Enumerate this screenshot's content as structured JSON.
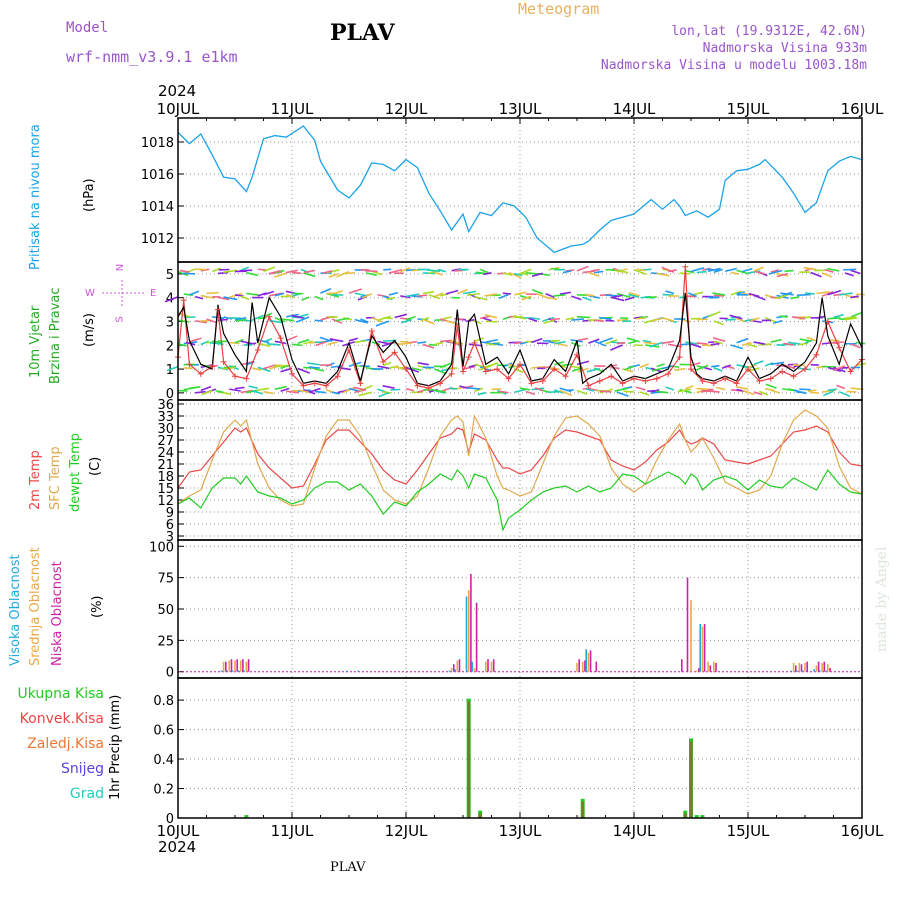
{
  "header": {
    "model_label": "Model",
    "model_name": "wrf-nmm_v3.9.1  e1km",
    "title": "PLAV",
    "product": "Meteogram",
    "lonlat": "lon,lat (19.9312E, 42.6N)",
    "altitude": "Nadmorska Visina 933m",
    "model_altitude": "Nadmorska Visina u modelu 1003.18m",
    "footer": "PLAV",
    "credit": "made by Angel"
  },
  "colors": {
    "pressure": "#1aa3e8",
    "wind_text": "#22aa22",
    "wind_mean": "#000000",
    "wind_gust": "#e84040",
    "t2m": "#e84848",
    "sfc": "#e0a850",
    "dewpt": "#22cc22",
    "high_cloud": "#22aadd",
    "mid_cloud": "#e8a848",
    "low_cloud": "#cc22aa",
    "total_precip": "#22cc22",
    "conv_precip": "#ee4444",
    "frozen_precip": "#ee7733",
    "snow": "#5544dd",
    "hail": "#22ccbb",
    "header_purple": "#9955cc",
    "header_orange": "#e8b060"
  },
  "time_axis": {
    "year": "2024",
    "ticks": [
      "10JUL",
      "11JUL",
      "12JUL",
      "13JUL",
      "14JUL",
      "15JUL",
      "16JUL"
    ],
    "start_day": 10,
    "end_day": 16
  },
  "chart_data": [
    {
      "type": "line",
      "panel": "pressure",
      "ylabel": [
        "Pritisak na nivou mora",
        "(hPa)"
      ],
      "ylim": [
        1010.5,
        1019.5
      ],
      "yticks": [
        "1012",
        "1014",
        "1016",
        "1018"
      ],
      "ytick_values": [
        1012,
        1014,
        1016,
        1018
      ],
      "x": [
        10.0,
        10.1,
        10.2,
        10.3,
        10.4,
        10.5,
        10.6,
        10.65,
        10.75,
        10.85,
        10.95,
        11.1,
        11.2,
        11.25,
        11.4,
        11.5,
        11.6,
        11.7,
        11.8,
        11.9,
        12.0,
        12.1,
        12.2,
        12.3,
        12.4,
        12.5,
        12.55,
        12.65,
        12.75,
        12.85,
        12.95,
        13.05,
        13.15,
        13.3,
        13.45,
        13.55,
        13.6,
        13.7,
        13.8,
        13.9,
        14.0,
        14.1,
        14.15,
        14.25,
        14.35,
        14.4,
        14.45,
        14.55,
        14.65,
        14.75,
        14.8,
        14.9,
        15.0,
        15.1,
        15.15,
        15.3,
        15.4,
        15.5,
        15.6,
        15.7,
        15.8,
        15.9,
        16.0
      ],
      "values": [
        1018.6,
        1017.9,
        1018.5,
        1017.2,
        1015.8,
        1015.7,
        1014.9,
        1015.8,
        1018.2,
        1018.4,
        1018.3,
        1019.0,
        1018.1,
        1016.8,
        1015.0,
        1014.5,
        1015.3,
        1016.7,
        1016.6,
        1016.2,
        1016.9,
        1016.4,
        1014.8,
        1013.7,
        1012.5,
        1013.5,
        1012.4,
        1013.6,
        1013.4,
        1014.2,
        1014.0,
        1013.3,
        1012.0,
        1011.1,
        1011.5,
        1011.6,
        1011.8,
        1012.5,
        1013.1,
        1013.3,
        1013.5,
        1014.1,
        1014.4,
        1013.8,
        1014.4,
        1014.0,
        1013.4,
        1013.7,
        1013.3,
        1013.8,
        1015.6,
        1016.2,
        1016.3,
        1016.6,
        1016.9,
        1015.8,
        1014.8,
        1013.6,
        1014.2,
        1016.2,
        1016.8,
        1017.1,
        1016.9
      ]
    },
    {
      "type": "line",
      "panel": "wind",
      "ylabel": [
        "10m Vjetar",
        "Brzina i Pravac",
        "(m/s)"
      ],
      "compass": [
        "N",
        "W",
        "E",
        "S"
      ],
      "ylim": [
        -0.3,
        5.5
      ],
      "yticks": [
        "0",
        "1",
        "2",
        "3",
        "4",
        "5"
      ],
      "ytick_values": [
        0,
        1,
        2,
        3,
        4,
        5
      ],
      "series": [
        {
          "name": "mean",
          "x": [
            10.0,
            10.05,
            10.1,
            10.2,
            10.3,
            10.35,
            10.4,
            10.5,
            10.6,
            10.65,
            10.7,
            10.8,
            10.9,
            11.0,
            11.1,
            11.2,
            11.3,
            11.4,
            11.5,
            11.55,
            11.6,
            11.7,
            11.8,
            11.9,
            12.0,
            12.1,
            12.2,
            12.3,
            12.4,
            12.45,
            12.5,
            12.55,
            12.6,
            12.7,
            12.8,
            12.9,
            13.0,
            13.1,
            13.2,
            13.3,
            13.4,
            13.5,
            13.55,
            13.6,
            13.7,
            13.8,
            13.9,
            14.0,
            14.1,
            14.2,
            14.3,
            14.4,
            14.45,
            14.5,
            14.55,
            14.6,
            14.7,
            14.8,
            14.9,
            15.0,
            15.1,
            15.2,
            15.3,
            15.4,
            15.5,
            15.6,
            15.65,
            15.7,
            15.8,
            15.9,
            16.0
          ],
          "values": [
            3.2,
            3.6,
            2.2,
            1.2,
            1.0,
            3.7,
            2.5,
            1.6,
            0.9,
            3.8,
            2.1,
            4.0,
            3.2,
            1.4,
            0.4,
            0.5,
            0.4,
            0.9,
            2.1,
            1.3,
            0.5,
            2.4,
            1.7,
            2.2,
            1.5,
            0.4,
            0.3,
            0.5,
            1.2,
            3.5,
            1.1,
            3.0,
            3.3,
            1.2,
            1.5,
            0.8,
            1.8,
            0.5,
            0.6,
            1.4,
            0.9,
            2.2,
            0.4,
            0.6,
            0.8,
            1.2,
            0.5,
            0.7,
            0.6,
            0.8,
            1.0,
            2.2,
            4.2,
            1.5,
            0.8,
            0.6,
            0.5,
            0.7,
            0.5,
            1.5,
            0.6,
            0.8,
            1.2,
            0.9,
            1.3,
            2.1,
            4.0,
            2.4,
            1.2,
            2.9,
            1.9
          ]
        },
        {
          "name": "gust",
          "x": [
            10.0,
            10.05,
            10.1,
            10.2,
            10.3,
            10.35,
            10.4,
            10.5,
            10.6,
            10.7,
            10.8,
            10.9,
            11.0,
            11.1,
            11.2,
            11.3,
            11.4,
            11.5,
            11.6,
            11.7,
            11.8,
            11.9,
            12.0,
            12.1,
            12.2,
            12.3,
            12.4,
            12.45,
            12.5,
            12.55,
            12.6,
            12.7,
            12.8,
            12.9,
            13.0,
            13.1,
            13.2,
            13.3,
            13.4,
            13.5,
            13.6,
            13.7,
            13.8,
            13.9,
            14.0,
            14.1,
            14.2,
            14.3,
            14.4,
            14.45,
            14.5,
            14.6,
            14.7,
            14.8,
            14.9,
            15.0,
            15.1,
            15.2,
            15.3,
            15.4,
            15.5,
            15.6,
            15.7,
            15.8,
            15.9,
            16.0
          ],
          "values": [
            1.5,
            3.9,
            1.2,
            0.8,
            1.1,
            3.5,
            1.3,
            0.7,
            0.6,
            1.8,
            3.2,
            2.3,
            0.8,
            0.3,
            0.4,
            0.3,
            0.7,
            1.8,
            0.4,
            2.6,
            1.3,
            1.7,
            1.0,
            0.3,
            0.2,
            0.4,
            0.8,
            2.8,
            0.9,
            1.5,
            2.1,
            0.9,
            1.0,
            0.6,
            1.2,
            0.4,
            0.5,
            1.0,
            0.7,
            1.6,
            0.3,
            0.5,
            0.7,
            0.4,
            0.6,
            0.5,
            0.6,
            0.8,
            1.5,
            5.3,
            1.0,
            0.5,
            0.4,
            0.6,
            0.4,
            1.0,
            0.5,
            0.6,
            0.9,
            0.7,
            1.0,
            1.6,
            3.0,
            1.9,
            0.9,
            1.4
          ]
        }
      ]
    },
    {
      "type": "line",
      "panel": "temperature",
      "ylabel": [
        "2m Temp",
        "SFC Temp",
        "dewpt Temp",
        "(C)"
      ],
      "ylim": [
        2,
        37
      ],
      "yticks": [
        "3",
        "6",
        "9",
        "12",
        "15",
        "18",
        "21",
        "24",
        "27",
        "30",
        "33",
        "36"
      ],
      "ytick_values": [
        3,
        6,
        9,
        12,
        15,
        18,
        21,
        24,
        27,
        30,
        33,
        36
      ],
      "x": [
        10.0,
        10.1,
        10.2,
        10.3,
        10.4,
        10.5,
        10.55,
        10.6,
        10.7,
        10.8,
        10.9,
        11.0,
        11.1,
        11.2,
        11.3,
        11.4,
        11.5,
        11.6,
        11.7,
        11.8,
        11.9,
        12.0,
        12.1,
        12.2,
        12.3,
        12.4,
        12.45,
        12.5,
        12.55,
        12.6,
        12.7,
        12.8,
        12.85,
        12.9,
        13.0,
        13.1,
        13.2,
        13.3,
        13.4,
        13.5,
        13.6,
        13.7,
        13.8,
        13.9,
        14.0,
        14.1,
        14.2,
        14.3,
        14.4,
        14.45,
        14.5,
        14.55,
        14.6,
        14.7,
        14.8,
        14.9,
        15.0,
        15.1,
        15.2,
        15.3,
        15.4,
        15.5,
        15.6,
        15.7,
        15.8,
        15.9,
        16.0
      ],
      "series": [
        {
          "name": "2m Temp",
          "values": [
            15.0,
            19.0,
            19.5,
            23.0,
            26.5,
            30.0,
            29.0,
            30.0,
            23.5,
            20.0,
            17.5,
            15.0,
            15.5,
            21.0,
            27.0,
            29.5,
            29.5,
            26.5,
            23.5,
            19.5,
            17.0,
            16.0,
            19.5,
            23.5,
            27.5,
            28.5,
            30.0,
            29.5,
            24.0,
            28.5,
            27.0,
            22.0,
            20.0,
            20.0,
            18.5,
            19.5,
            23.0,
            27.5,
            29.5,
            29.0,
            28.0,
            27.0,
            22.0,
            20.5,
            19.5,
            21.5,
            24.5,
            26.5,
            29.5,
            27.0,
            26.0,
            26.5,
            27.5,
            26.0,
            22.0,
            21.5,
            21.0,
            22.0,
            23.0,
            26.0,
            29.0,
            29.5,
            30.5,
            29.0,
            24.0,
            21.0,
            20.5
          ]
        },
        {
          "name": "SFC Temp",
          "values": [
            11.0,
            13.0,
            14.5,
            22.0,
            29.0,
            32.0,
            30.5,
            32.0,
            21.0,
            15.0,
            12.0,
            10.5,
            11.0,
            20.0,
            28.0,
            32.0,
            32.0,
            28.0,
            21.0,
            14.5,
            12.0,
            11.0,
            13.0,
            20.0,
            28.0,
            32.0,
            33.0,
            31.5,
            23.0,
            33.0,
            27.5,
            18.0,
            15.0,
            14.5,
            13.0,
            14.0,
            21.0,
            28.0,
            32.5,
            33.0,
            31.0,
            28.0,
            20.0,
            16.0,
            14.0,
            16.0,
            22.0,
            27.0,
            31.0,
            27.0,
            24.0,
            25.5,
            27.5,
            22.5,
            16.5,
            15.0,
            13.5,
            14.5,
            18.0,
            26.0,
            32.0,
            34.5,
            33.0,
            30.0,
            20.5,
            15.0,
            13.5
          ]
        },
        {
          "name": "dewpt Temp",
          "values": [
            11.0,
            12.5,
            10.0,
            15.0,
            17.5,
            17.5,
            16.0,
            18.0,
            14.0,
            13.0,
            12.5,
            11.0,
            12.0,
            15.0,
            16.5,
            16.5,
            14.5,
            16.0,
            13.0,
            8.5,
            11.5,
            10.5,
            14.0,
            16.0,
            18.5,
            17.0,
            19.5,
            18.0,
            15.0,
            18.5,
            17.5,
            12.0,
            4.5,
            7.5,
            9.5,
            12.0,
            14.0,
            15.0,
            15.5,
            14.0,
            15.5,
            14.0,
            15.0,
            18.5,
            18.0,
            16.0,
            17.5,
            19.0,
            17.5,
            16.0,
            18.5,
            17.5,
            14.5,
            17.0,
            18.0,
            17.0,
            14.5,
            17.0,
            15.5,
            15.0,
            17.5,
            16.0,
            14.5,
            19.5,
            16.0,
            14.0,
            13.5
          ]
        }
      ]
    },
    {
      "type": "bar",
      "panel": "cloud",
      "ylabel": [
        "Visoka Oblacnost",
        "Srednja Oblacnost",
        "Niska Oblacnost",
        "(%)"
      ],
      "ylim": [
        -5,
        105
      ],
      "yticks": [
        "0",
        "25",
        "50",
        "75",
        "100"
      ],
      "ytick_values": [
        0,
        25,
        50,
        75,
        100
      ],
      "x": [
        10.4,
        10.45,
        10.5,
        10.55,
        10.6,
        11.5,
        11.6,
        12.4,
        12.45,
        12.55,
        12.6,
        12.7,
        12.75,
        13.5,
        13.55,
        13.6,
        13.65,
        14.4,
        14.45,
        14.5,
        14.55,
        14.6,
        14.65,
        14.7,
        15.4,
        15.45,
        15.5,
        15.6,
        15.65,
        15.7
      ],
      "series": [
        {
          "name": "Visoka Oblacnost",
          "values": [
            1,
            1,
            1,
            1,
            1,
            1,
            1,
            1,
            2,
            60,
            8,
            0,
            0,
            0,
            0,
            18,
            0,
            0,
            0,
            0,
            0,
            38,
            0,
            0,
            1,
            1,
            1,
            2,
            1,
            1
          ]
        },
        {
          "name": "Srednja Oblacnost",
          "values": [
            8,
            9,
            9,
            9,
            8,
            0,
            0,
            3,
            9,
            65,
            3,
            8,
            8,
            7,
            8,
            15,
            0,
            0,
            0,
            57,
            1,
            36,
            8,
            8,
            7,
            7,
            7,
            5,
            7,
            6
          ]
        },
        {
          "name": "Niska Oblacnost",
          "values": [
            8,
            10,
            10,
            10,
            10,
            0,
            0,
            6,
            10,
            78,
            55,
            10,
            10,
            10,
            9,
            17,
            8,
            10,
            75,
            0,
            3,
            38,
            5,
            7,
            5,
            6,
            8,
            8,
            8,
            3
          ]
        }
      ]
    },
    {
      "type": "bar",
      "panel": "precip",
      "ylabel": [
        "1hr Precip (mm)"
      ],
      "legend_labels": [
        "Ukupna Kisa",
        "Konvek.Kisa",
        "Zaledj.Kisa",
        "Snijeg",
        "Grad"
      ],
      "ylim": [
        0,
        0.95
      ],
      "yticks": [
        "0",
        "0.2",
        "0.4",
        "0.6",
        "0.8"
      ],
      "ytick_values": [
        0,
        0.2,
        0.4,
        0.6,
        0.8
      ],
      "x": [
        10.6,
        12.55,
        12.6,
        12.65,
        13.55,
        14.45,
        14.5,
        14.55,
        14.6
      ],
      "series": [
        {
          "name": "Ukupna Kisa",
          "values": [
            0.02,
            0.81,
            0.0,
            0.05,
            0.13,
            0.05,
            0.54,
            0.02,
            0.02
          ]
        },
        {
          "name": "Konvek.Kisa",
          "values": [
            0.02,
            0.81,
            0.0,
            0.05,
            0.13,
            0.05,
            0.54,
            0.02,
            0.02
          ]
        }
      ]
    }
  ]
}
